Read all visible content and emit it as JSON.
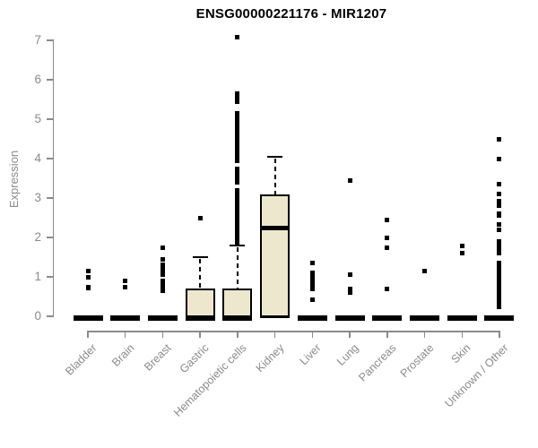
{
  "chart_data": {
    "type": "boxplot",
    "title": "ENSG00000221176 - MIR1207",
    "ylabel": "Expression",
    "xlabel": "",
    "ylim": [
      0,
      7
    ],
    "yticks": [
      0,
      1,
      2,
      3,
      4,
      5,
      6,
      7
    ],
    "grid": false,
    "legend": false,
    "categories": [
      "Bladder",
      "Brain",
      "Breast",
      "Gastric",
      "Hematopoietic cells",
      "Kidney",
      "Liver",
      "Lung",
      "Pancreas",
      "Prostate",
      "Skin",
      "Unknown / Other"
    ],
    "series": [
      {
        "name": "Bladder",
        "q1": 0,
        "median": 0,
        "q3": 0,
        "whisker_low": 0,
        "whisker_high": 0,
        "outliers": [
          1.15,
          1.0,
          0.75,
          0.72
        ]
      },
      {
        "name": "Brain",
        "q1": 0,
        "median": 0,
        "q3": 0,
        "whisker_low": 0,
        "whisker_high": 0,
        "outliers": [
          0.9,
          0.75
        ]
      },
      {
        "name": "Breast",
        "q1": 0,
        "median": 0,
        "q3": 0,
        "whisker_low": 0,
        "whisker_high": 0,
        "outliers": [
          1.75,
          1.45,
          1.3,
          1.25,
          1.2,
          1.15,
          1.1,
          1.05,
          0.9,
          0.85,
          0.8,
          0.75,
          0.65
        ]
      },
      {
        "name": "Gastric",
        "q1": 0,
        "median": 0,
        "q3": 0.7,
        "whisker_low": 0,
        "whisker_high": 1.5,
        "outliers": [
          2.5
        ]
      },
      {
        "name": "Hematopoietic cells",
        "q1": 0,
        "median": 0,
        "q3": 0.7,
        "whisker_low": 0,
        "whisker_high": 1.8,
        "outliers": [
          7.08,
          5.65,
          5.58,
          5.5,
          5.45,
          5.15,
          5.1,
          5.05,
          5.0,
          4.95,
          4.9,
          4.85,
          4.8,
          4.75,
          4.7,
          4.65,
          4.6,
          4.55,
          4.5,
          4.45,
          4.4,
          4.35,
          4.3,
          4.25,
          4.2,
          4.15,
          4.1,
          4.05,
          4.0,
          3.95,
          3.75,
          3.7,
          3.65,
          3.55,
          3.5,
          3.4,
          3.2,
          3.15,
          3.1,
          3.0,
          2.95,
          2.9,
          2.8,
          2.75,
          2.7,
          2.6,
          2.55,
          2.5,
          2.45,
          2.35,
          2.3,
          2.25,
          2.2,
          2.1,
          2.05,
          2.0,
          1.95,
          1.9,
          1.85
        ]
      },
      {
        "name": "Kidney",
        "q1": 0,
        "median": 2.25,
        "q3": 3.1,
        "whisker_low": 0,
        "whisker_high": 4.05,
        "outliers": []
      },
      {
        "name": "Liver",
        "q1": 0,
        "median": 0,
        "q3": 0,
        "whisker_low": 0,
        "whisker_high": 0,
        "outliers": [
          1.35,
          1.1,
          1.0,
          0.93,
          0.86,
          0.78,
          0.7,
          0.41
        ]
      },
      {
        "name": "Lung",
        "q1": 0,
        "median": 0,
        "q3": 0,
        "whisker_low": 0,
        "whisker_high": 0,
        "outliers": [
          3.45,
          1.05,
          0.7,
          0.6
        ]
      },
      {
        "name": "Pancreas",
        "q1": 0,
        "median": 0,
        "q3": 0,
        "whisker_low": 0,
        "whisker_high": 0,
        "outliers": [
          2.45,
          2.0,
          1.75,
          0.7
        ]
      },
      {
        "name": "Prostate",
        "q1": 0,
        "median": 0,
        "q3": 0,
        "whisker_low": 0,
        "whisker_high": 0,
        "outliers": [
          1.15
        ]
      },
      {
        "name": "Skin",
        "q1": 0,
        "median": 0,
        "q3": 0,
        "whisker_low": 0,
        "whisker_high": 0,
        "outliers": [
          1.78,
          1.6
        ]
      },
      {
        "name": "Unknown / Other",
        "q1": 0,
        "median": 0,
        "q3": 0,
        "whisker_low": 0,
        "whisker_high": 0,
        "outliers": [
          4.5,
          4.0,
          3.35,
          3.1,
          2.92,
          2.8,
          2.6,
          2.55,
          2.32,
          2.2,
          1.9,
          1.82,
          1.72,
          1.65,
          1.6,
          1.35,
          1.3,
          1.25,
          1.2,
          1.15,
          1.1,
          1.05,
          1.0,
          0.95,
          0.9,
          0.85,
          0.8,
          0.75,
          0.7,
          0.65,
          0.6,
          0.55,
          0.5,
          0.45,
          0.4,
          0.35,
          0.3,
          0.25
        ]
      }
    ]
  },
  "colors": {
    "background": "#ffffff",
    "title_text": "#000000",
    "axis": "#8a8a8a",
    "label_text": "#8a8a8a",
    "box_fill": "#ede7ce",
    "box_border": "#000000",
    "outlier": "#000000"
  }
}
